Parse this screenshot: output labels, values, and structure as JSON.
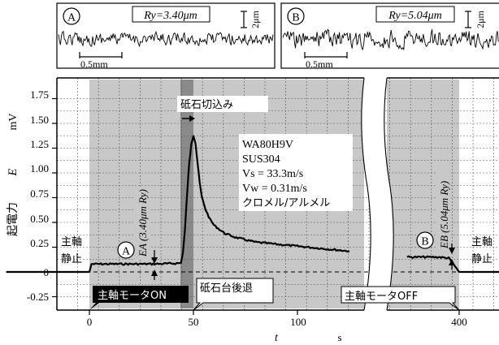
{
  "profiles": [
    {
      "marker": "A",
      "r_label": "Ry=3.40μm",
      "vscale": "2μm",
      "hscale": "0.5mm"
    },
    {
      "marker": "B",
      "r_label": "Ry=5.04μm",
      "vscale": "2μm",
      "hscale": "0.5mm"
    }
  ],
  "chart_data": {
    "type": "line",
    "y_unit": "mV",
    "y_label_jp": "起電力",
    "y_label_sym": "E",
    "x_label_sym": "t",
    "x_unit": "s",
    "ylim": [
      -0.375,
      1.875
    ],
    "y_ticks": [
      "1.75",
      "1.50",
      "1.25",
      "1.00",
      "0.75",
      "0.50",
      "0.25",
      "0",
      "-0.25"
    ],
    "x_ticks": [
      "0",
      "50",
      "100",
      "400"
    ],
    "x_break": "axis broken between ~120 s and ~375 s",
    "grid": true,
    "series": [
      {
        "points_seg1": [
          [
            -40,
            0.0
          ],
          [
            0,
            0.0
          ],
          [
            1,
            0.08
          ],
          [
            10,
            0.08
          ],
          [
            20,
            0.08
          ],
          [
            30,
            0.08
          ],
          [
            40,
            0.085
          ],
          [
            44,
            0.09
          ],
          [
            45,
            0.2
          ],
          [
            46,
            0.45
          ],
          [
            47,
            0.8
          ],
          [
            48,
            1.1
          ],
          [
            49,
            1.3
          ],
          [
            50,
            1.38
          ],
          [
            51,
            1.3
          ],
          [
            52,
            1.1
          ],
          [
            53,
            0.9
          ],
          [
            54,
            0.76
          ],
          [
            56,
            0.62
          ],
          [
            58,
            0.53
          ],
          [
            60,
            0.47
          ],
          [
            65,
            0.39
          ],
          [
            70,
            0.35
          ],
          [
            80,
            0.3
          ],
          [
            90,
            0.28
          ],
          [
            100,
            0.26
          ],
          [
            110,
            0.24
          ],
          [
            120,
            0.22
          ],
          [
            125,
            0.21
          ]
        ],
        "points_seg2": [
          [
            375,
            0.15
          ],
          [
            390,
            0.15
          ],
          [
            395,
            0.14
          ],
          [
            400,
            0.0
          ],
          [
            420,
            0.0
          ]
        ]
      }
    ],
    "annotations": {
      "cut_in": "砥石切込み",
      "specs": [
        "WA80H9V",
        "SUS304",
        "Vs = 33.3m/s",
        "Vw = 0.31m/s",
        "クロメル/アルメル"
      ],
      "point_A": "A",
      "point_B": "B",
      "EA_label": "EA (3.40μm Ry)",
      "EB_label": "EB (5.04μm Ry)",
      "spindle_stop_left": [
        "主軸",
        "静止"
      ],
      "spindle_stop_right": [
        "主軸",
        "静止"
      ],
      "motor_on": "主軸モータON",
      "table_retreat": "砥石台後退",
      "motor_off": "主軸モータOFF"
    }
  }
}
